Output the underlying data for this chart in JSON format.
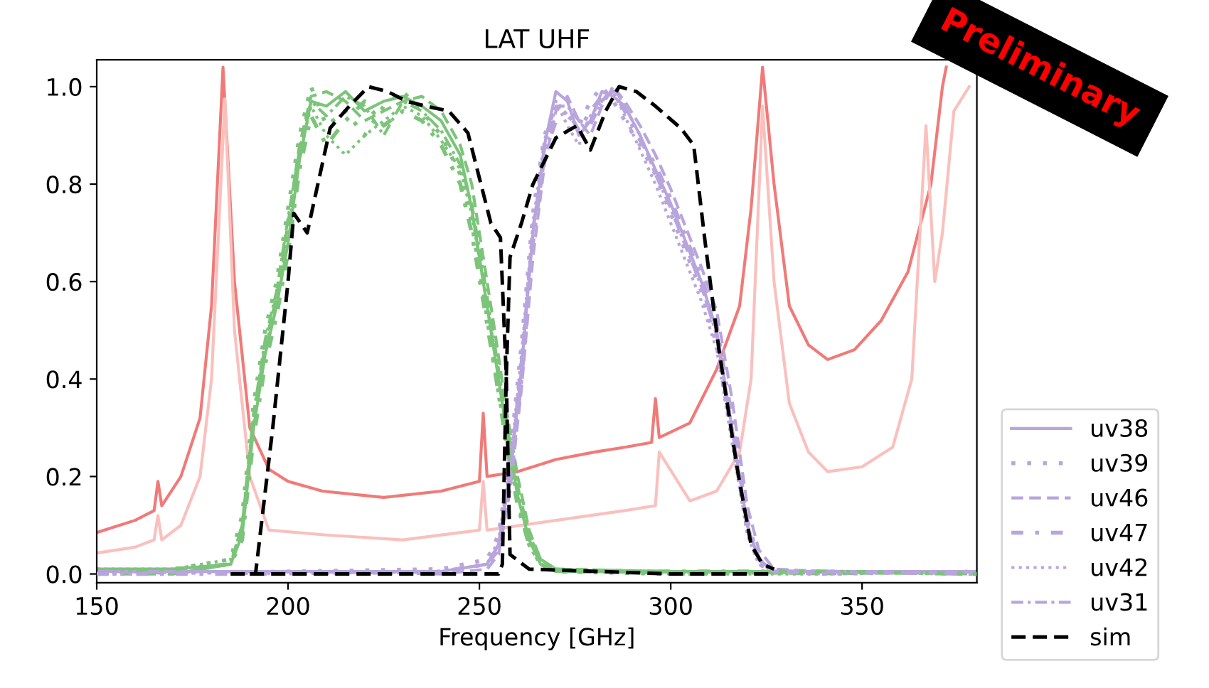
{
  "chart_data": {
    "type": "line",
    "title": "LAT UHF",
    "xlabel": "Frequency [GHz]",
    "xlim": [
      150,
      380
    ],
    "xticks": [
      150,
      200,
      250,
      300,
      350
    ],
    "ylim": [
      -0.018,
      1.055
    ],
    "yticks": [
      {
        "value": 0,
        "label": "0.0"
      },
      {
        "value": 0.2,
        "label": "0.2"
      },
      {
        "value": 0.4,
        "label": "0.4"
      },
      {
        "value": 0.6,
        "label": "0.6"
      },
      {
        "value": 0.8,
        "label": "0.8"
      },
      {
        "value": 1,
        "label": "1.0"
      }
    ],
    "grid": false,
    "legend": "right",
    "marker": "none",
    "annotations": [
      "Preliminary"
    ],
    "series": [
      {
        "color": "#f07a78",
        "line_style": "solid",
        "x": [
          150,
          160,
          165,
          166,
          167,
          172,
          177,
          180,
          183,
          186,
          190,
          195,
          200,
          209,
          225,
          240,
          250,
          251,
          252,
          260,
          270,
          280,
          288,
          295,
          296,
          297,
          305,
          312,
          318,
          321,
          324,
          327,
          331,
          336,
          341,
          348,
          355,
          362,
          368,
          371,
          372
        ],
        "values": [
          0.085,
          0.11,
          0.13,
          0.19,
          0.14,
          0.2,
          0.32,
          0.55,
          1.04,
          0.6,
          0.3,
          0.215,
          0.19,
          0.17,
          0.157,
          0.17,
          0.19,
          0.33,
          0.2,
          0.21,
          0.235,
          0.25,
          0.26,
          0.27,
          0.36,
          0.28,
          0.31,
          0.42,
          0.55,
          0.75,
          1.04,
          0.8,
          0.55,
          0.47,
          0.44,
          0.46,
          0.52,
          0.62,
          0.8,
          1.0,
          1.04
        ]
      },
      {
        "color": "#f9c0bd",
        "line_style": "solid",
        "x": [
          150,
          160,
          165,
          166,
          167,
          172,
          177,
          180,
          183.5,
          186,
          190,
          195,
          210,
          230,
          250,
          251,
          252,
          270,
          288,
          296,
          297,
          305,
          312,
          318,
          321,
          324,
          327,
          331,
          336,
          341,
          350,
          358,
          363,
          366.7,
          369,
          371,
          374,
          378
        ],
        "values": [
          0.043,
          0.055,
          0.07,
          0.12,
          0.07,
          0.1,
          0.2,
          0.4,
          0.975,
          0.5,
          0.2,
          0.09,
          0.08,
          0.07,
          0.09,
          0.19,
          0.09,
          0.11,
          0.13,
          0.14,
          0.25,
          0.15,
          0.17,
          0.25,
          0.4,
          0.96,
          0.6,
          0.35,
          0.25,
          0.21,
          0.22,
          0.26,
          0.4,
          0.92,
          0.6,
          0.7,
          0.95,
          1.0
        ]
      },
      {
        "color": "#7cc47a",
        "line_style": "solid",
        "x": [
          150,
          170,
          185,
          188,
          191,
          194,
          197,
          200,
          203,
          206,
          210,
          215,
          220,
          225,
          230,
          235,
          240,
          245,
          248,
          251,
          254,
          257,
          260,
          263,
          266,
          270,
          300,
          340,
          380
        ],
        "values": [
          0.01,
          0.01,
          0.02,
          0.08,
          0.3,
          0.45,
          0.55,
          0.68,
          0.85,
          0.97,
          0.96,
          0.99,
          0.95,
          0.97,
          0.98,
          0.96,
          0.93,
          0.86,
          0.75,
          0.6,
          0.45,
          0.3,
          0.16,
          0.07,
          0.02,
          0.005,
          0.005,
          0.005,
          0.005
        ]
      },
      {
        "color": "#7cc47a",
        "line_style": "loosely dotted",
        "x": [
          150,
          170,
          185,
          188,
          191,
          194,
          197,
          200,
          203,
          206,
          210,
          215,
          220,
          225,
          230,
          235,
          240,
          245,
          248,
          251,
          254,
          257,
          260,
          263,
          266,
          270,
          300,
          340,
          380
        ],
        "values": [
          0.0,
          0.01,
          0.03,
          0.12,
          0.35,
          0.5,
          0.6,
          0.75,
          0.9,
          1.0,
          0.92,
          0.95,
          0.9,
          0.96,
          0.99,
          0.95,
          0.9,
          0.82,
          0.72,
          0.58,
          0.42,
          0.28,
          0.15,
          0.06,
          0.02,
          0.005,
          0.0,
          0.005,
          0.0
        ]
      },
      {
        "color": "#7cc47a",
        "line_style": "dashed",
        "x": [
          150,
          170,
          185,
          188,
          191,
          194,
          197,
          200,
          203,
          206,
          210,
          215,
          220,
          225,
          230,
          235,
          240,
          245,
          248,
          251,
          254,
          257,
          260,
          263,
          266,
          270,
          300,
          340,
          380
        ],
        "values": [
          0.01,
          0.0,
          0.02,
          0.1,
          0.32,
          0.47,
          0.57,
          0.72,
          0.88,
          0.98,
          0.99,
          0.97,
          0.93,
          0.95,
          0.97,
          0.98,
          0.95,
          0.88,
          0.8,
          0.65,
          0.5,
          0.34,
          0.2,
          0.09,
          0.03,
          0.01,
          0.005,
          0.0,
          0.005
        ]
      },
      {
        "color": "#7cc47a",
        "line_style": "loosely dashdot",
        "x": [
          150,
          170,
          185,
          188,
          191,
          194,
          197,
          200,
          203,
          206,
          210,
          215,
          220,
          225,
          230,
          235,
          240,
          245,
          248,
          251,
          254,
          257,
          260,
          263,
          266,
          270,
          300,
          340,
          380
        ],
        "values": [
          0.0,
          0.01,
          0.02,
          0.07,
          0.28,
          0.43,
          0.53,
          0.66,
          0.83,
          0.94,
          0.88,
          0.93,
          0.97,
          0.92,
          0.95,
          0.93,
          0.88,
          0.8,
          0.7,
          0.56,
          0.42,
          0.27,
          0.14,
          0.06,
          0.02,
          0.005,
          0.005,
          0.005,
          0.0
        ]
      },
      {
        "color": "#7cc47a",
        "line_style": "dotted",
        "x": [
          150,
          170,
          185,
          188,
          191,
          194,
          197,
          200,
          203,
          206,
          210,
          215,
          220,
          225,
          230,
          235,
          240,
          245,
          248,
          251,
          254,
          257,
          260,
          263,
          266,
          270,
          300,
          340,
          380
        ],
        "values": [
          0.01,
          0.01,
          0.03,
          0.09,
          0.31,
          0.46,
          0.56,
          0.7,
          0.86,
          0.96,
          0.9,
          0.86,
          0.9,
          0.93,
          0.96,
          0.94,
          0.89,
          0.83,
          0.74,
          0.6,
          0.46,
          0.31,
          0.17,
          0.08,
          0.03,
          0.01,
          0.0,
          0.0,
          0.005
        ]
      },
      {
        "color": "#7cc47a",
        "line_style": "dashdot",
        "x": [
          150,
          170,
          185,
          188,
          191,
          194,
          197,
          200,
          203,
          206,
          210,
          215,
          220,
          225,
          230,
          235,
          240,
          245,
          248,
          251,
          254,
          257,
          260,
          263,
          266,
          270,
          300,
          340,
          380
        ],
        "values": [
          0.0,
          0.0,
          0.02,
          0.1,
          0.33,
          0.48,
          0.58,
          0.73,
          0.87,
          0.97,
          0.94,
          0.98,
          0.96,
          0.9,
          0.97,
          0.95,
          0.91,
          0.84,
          0.76,
          0.62,
          0.47,
          0.32,
          0.18,
          0.08,
          0.03,
          0.01,
          0.005,
          0.005,
          0.0
        ]
      },
      {
        "name": "uv38",
        "color": "#b8a5dc",
        "line_style": "solid",
        "x": [
          150,
          200,
          240,
          252,
          255,
          258,
          261,
          264,
          267,
          270,
          273,
          276,
          279,
          282,
          285,
          288,
          292,
          296,
          300,
          304,
          308,
          312,
          316,
          320,
          323,
          327,
          340,
          380
        ],
        "values": [
          0.005,
          0.005,
          0.005,
          0.02,
          0.06,
          0.2,
          0.42,
          0.7,
          0.88,
          0.99,
          0.97,
          0.9,
          0.93,
          0.99,
          0.98,
          0.96,
          0.9,
          0.83,
          0.76,
          0.68,
          0.6,
          0.5,
          0.3,
          0.1,
          0.03,
          0.005,
          0.005,
          0.005
        ]
      },
      {
        "name": "uv39",
        "color": "#b8a5dc",
        "line_style": "loosely dotted",
        "x": [
          150,
          200,
          240,
          252,
          255,
          258,
          261,
          264,
          267,
          270,
          273,
          276,
          279,
          282,
          285,
          288,
          292,
          296,
          300,
          304,
          308,
          312,
          316,
          320,
          323,
          327,
          340,
          380
        ],
        "values": [
          0.0,
          0.005,
          0.01,
          0.03,
          0.08,
          0.24,
          0.47,
          0.74,
          0.9,
          0.96,
          0.94,
          0.92,
          0.97,
          1.0,
          0.97,
          0.93,
          0.88,
          0.82,
          0.74,
          0.66,
          0.58,
          0.47,
          0.28,
          0.09,
          0.02,
          0.005,
          0.0,
          0.005
        ]
      },
      {
        "name": "uv46",
        "color": "#b8a5dc",
        "line_style": "dashed",
        "x": [
          150,
          200,
          240,
          252,
          255,
          258,
          261,
          264,
          267,
          270,
          273,
          276,
          279,
          282,
          285,
          288,
          292,
          296,
          300,
          304,
          308,
          312,
          316,
          320,
          323,
          327,
          340,
          380
        ],
        "values": [
          0.005,
          0.005,
          0.0,
          0.01,
          0.04,
          0.17,
          0.38,
          0.65,
          0.84,
          0.95,
          0.98,
          0.93,
          0.9,
          0.96,
          1.0,
          0.97,
          0.92,
          0.86,
          0.79,
          0.71,
          0.63,
          0.54,
          0.36,
          0.14,
          0.05,
          0.01,
          0.005,
          0.005
        ]
      },
      {
        "name": "uv47",
        "color": "#b8a5dc",
        "line_style": "loosely dashdot",
        "x": [
          150,
          200,
          240,
          252,
          255,
          258,
          261,
          264,
          267,
          270,
          273,
          276,
          279,
          282,
          285,
          288,
          292,
          296,
          300,
          304,
          308,
          312,
          316,
          320,
          323,
          327,
          340,
          380
        ],
        "values": [
          0.0,
          0.0,
          0.005,
          0.02,
          0.05,
          0.19,
          0.4,
          0.68,
          0.86,
          0.93,
          0.95,
          0.91,
          0.95,
          0.98,
          0.99,
          0.95,
          0.89,
          0.84,
          0.77,
          0.69,
          0.61,
          0.51,
          0.32,
          0.11,
          0.03,
          0.005,
          0.005,
          0.0
        ]
      },
      {
        "name": "uv42",
        "color": "#b8a5dc",
        "line_style": "dotted",
        "x": [
          150,
          200,
          240,
          252,
          255,
          258,
          261,
          264,
          267,
          270,
          273,
          276,
          279,
          282,
          285,
          288,
          292,
          296,
          300,
          304,
          308,
          312,
          316,
          320,
          323,
          327,
          340,
          380
        ],
        "values": [
          0.005,
          0.0,
          0.005,
          0.02,
          0.07,
          0.22,
          0.45,
          0.72,
          0.89,
          0.97,
          0.92,
          0.88,
          0.94,
          0.97,
          0.99,
          0.94,
          0.87,
          0.8,
          0.72,
          0.64,
          0.56,
          0.46,
          0.27,
          0.08,
          0.02,
          0.005,
          0.0,
          0.005
        ]
      },
      {
        "name": "uv31",
        "color": "#b8a5dc",
        "line_style": "dashdot",
        "x": [
          150,
          200,
          240,
          252,
          255,
          258,
          261,
          264,
          267,
          270,
          273,
          276,
          279,
          282,
          285,
          288,
          292,
          296,
          300,
          304,
          308,
          312,
          316,
          320,
          323,
          327,
          340,
          380
        ],
        "values": [
          0.005,
          0.005,
          0.005,
          0.02,
          0.06,
          0.21,
          0.44,
          0.71,
          0.87,
          0.96,
          0.96,
          0.93,
          0.92,
          0.97,
          1.0,
          0.96,
          0.9,
          0.82,
          0.75,
          0.67,
          0.59,
          0.49,
          0.3,
          0.1,
          0.03,
          0.005,
          0.005,
          0.005
        ]
      },
      {
        "name": "sim",
        "color": "#000000",
        "line_style": "dashed",
        "x": [
          185,
          191.5,
          196,
          200,
          201.5,
          205,
          211,
          216,
          221,
          226,
          231,
          236,
          242,
          247,
          253,
          255.5,
          257,
          258,
          263,
          300,
          327
        ],
        "values": [
          0,
          0,
          0.3,
          0.6,
          0.74,
          0.7,
          0.915,
          0.96,
          1.0,
          0.99,
          0.97,
          0.96,
          0.95,
          0.905,
          0.72,
          0.69,
          0.41,
          0.04,
          0.01,
          0,
          0
        ]
      },
      {
        "color": "#000000",
        "line_style": "dashed",
        "x": [
          190,
          230,
          255,
          256,
          257,
          258,
          261,
          264,
          270,
          275.5,
          279,
          283,
          286.5,
          291,
          296,
          302.6,
          306,
          309,
          312.6,
          317.4,
          321,
          324,
          327
        ],
        "values": [
          0,
          0,
          0,
          0.02,
          0.4,
          0.65,
          0.72,
          0.8,
          0.895,
          0.92,
          0.87,
          0.95,
          1.0,
          0.99,
          0.96,
          0.915,
          0.88,
          0.68,
          0.46,
          0.215,
          0.06,
          0.02,
          0.01
        ]
      }
    ]
  }
}
